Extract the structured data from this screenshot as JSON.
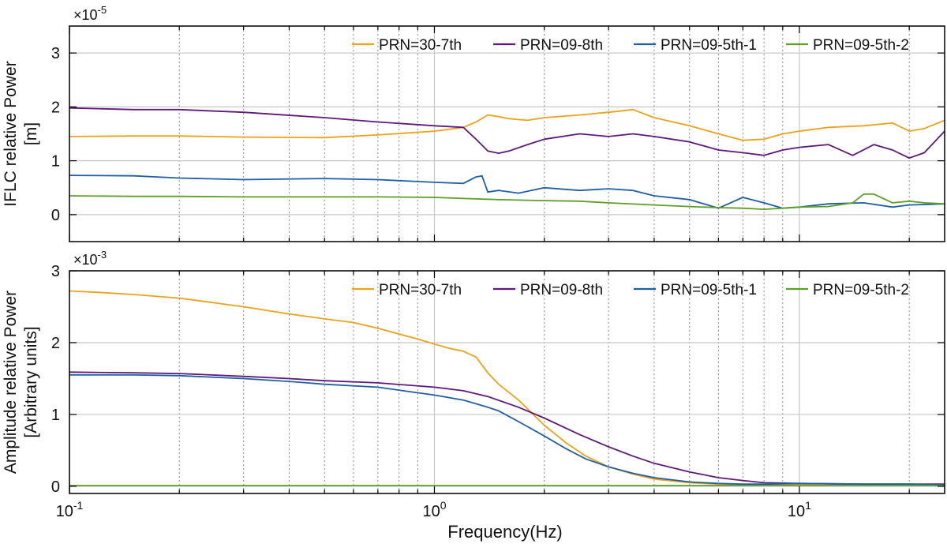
{
  "colors": {
    "prn30_7th": "#EDA21B",
    "prn09_8th": "#5E1A7A",
    "prn09_5th_1": "#1F5FA6",
    "prn09_5th_2": "#5E9F2A",
    "grid_major": "#c8c8c8",
    "grid_minor": "#8a8a8a",
    "axis": "#000000"
  },
  "xlabel": "Frequency(Hz)",
  "x_ticks": [
    {
      "value": 0.1,
      "base": "10",
      "exp": "-1"
    },
    {
      "value": 1,
      "base": "10",
      "exp": "0"
    },
    {
      "value": 10,
      "base": "10",
      "exp": "1"
    }
  ],
  "chart_data": [
    {
      "type": "line",
      "xscale": "log",
      "xlim": [
        0.1,
        25
      ],
      "ylim": [
        -0.5,
        3.5
      ],
      "ylabel_line1": "IFLC relative Power",
      "ylabel_line2": "[m]",
      "y_multiplier": "×10",
      "y_multiplier_exp": "-5",
      "y_ticks": [
        0,
        1,
        2,
        3
      ],
      "grid": "on",
      "legend_position": "top",
      "series": [
        {
          "name": "PRN=30-7th",
          "color_key": "prn30_7th",
          "x": [
            0.1,
            0.15,
            0.2,
            0.3,
            0.5,
            0.7,
            1.0,
            1.2,
            1.3,
            1.4,
            1.5,
            1.6,
            1.8,
            2.0,
            2.5,
            3.0,
            3.5,
            4.0,
            5.0,
            6.0,
            7.0,
            8.0,
            9.0,
            10,
            12,
            15,
            18,
            20,
            22,
            25
          ],
          "y": [
            1.45,
            1.46,
            1.46,
            1.44,
            1.43,
            1.48,
            1.55,
            1.62,
            1.72,
            1.85,
            1.82,
            1.78,
            1.75,
            1.8,
            1.85,
            1.9,
            1.95,
            1.8,
            1.65,
            1.5,
            1.38,
            1.4,
            1.5,
            1.55,
            1.62,
            1.65,
            1.7,
            1.55,
            1.6,
            1.75
          ]
        },
        {
          "name": "PRN=09-8th",
          "color_key": "prn09_8th",
          "x": [
            0.1,
            0.15,
            0.2,
            0.3,
            0.5,
            0.7,
            1.0,
            1.2,
            1.3,
            1.4,
            1.5,
            1.6,
            1.8,
            2.0,
            2.5,
            3.0,
            3.5,
            4.0,
            5.0,
            6.0,
            7.0,
            8.0,
            9.0,
            10,
            12,
            14,
            16,
            18,
            20,
            22,
            25
          ],
          "y": [
            1.98,
            1.95,
            1.95,
            1.9,
            1.8,
            1.72,
            1.65,
            1.62,
            1.4,
            1.18,
            1.14,
            1.18,
            1.3,
            1.4,
            1.5,
            1.45,
            1.5,
            1.45,
            1.35,
            1.2,
            1.15,
            1.1,
            1.2,
            1.25,
            1.3,
            1.1,
            1.3,
            1.2,
            1.05,
            1.15,
            1.55
          ]
        },
        {
          "name": "PRN=09-5th-1",
          "color_key": "prn09_5th_1",
          "x": [
            0.1,
            0.15,
            0.2,
            0.3,
            0.5,
            0.7,
            1.0,
            1.2,
            1.3,
            1.35,
            1.4,
            1.5,
            1.7,
            2.0,
            2.5,
            3.0,
            3.5,
            4.0,
            5.0,
            6.0,
            7.0,
            8.0,
            9.0,
            10,
            12,
            15,
            18,
            20,
            25
          ],
          "y": [
            0.73,
            0.72,
            0.68,
            0.65,
            0.67,
            0.65,
            0.6,
            0.58,
            0.7,
            0.72,
            0.42,
            0.45,
            0.4,
            0.5,
            0.45,
            0.48,
            0.45,
            0.35,
            0.28,
            0.12,
            0.32,
            0.22,
            0.12,
            0.14,
            0.2,
            0.22,
            0.14,
            0.18,
            0.2
          ]
        },
        {
          "name": "PRN=09-5th-2",
          "color_key": "prn09_5th_2",
          "x": [
            0.1,
            0.15,
            0.2,
            0.3,
            0.5,
            0.7,
            1.0,
            1.2,
            1.5,
            2.0,
            2.5,
            3.0,
            4.0,
            5.0,
            6.0,
            7.0,
            8.0,
            9.0,
            10,
            12,
            14,
            15,
            16,
            18,
            20,
            22,
            25
          ],
          "y": [
            0.35,
            0.34,
            0.34,
            0.33,
            0.33,
            0.33,
            0.32,
            0.3,
            0.28,
            0.26,
            0.25,
            0.22,
            0.18,
            0.15,
            0.13,
            0.12,
            0.1,
            0.12,
            0.14,
            0.15,
            0.22,
            0.38,
            0.38,
            0.22,
            0.25,
            0.22,
            0.2
          ]
        }
      ]
    },
    {
      "type": "line",
      "xscale": "log",
      "xlim": [
        0.1,
        25
      ],
      "ylim": [
        -0.1,
        3.0
      ],
      "ylabel_line1": "Amplitude relative Power",
      "ylabel_line2": "[Arbitrary units]",
      "y_multiplier": "×10",
      "y_multiplier_exp": "-3",
      "y_ticks": [
        0,
        1,
        2,
        3
      ],
      "grid": "on",
      "legend_position": "top",
      "series": [
        {
          "name": "PRN=30-7th",
          "color_key": "prn30_7th",
          "x": [
            0.1,
            0.12,
            0.15,
            0.2,
            0.3,
            0.4,
            0.5,
            0.6,
            0.7,
            0.8,
            0.9,
            1.0,
            1.1,
            1.2,
            1.3,
            1.4,
            1.5,
            1.7,
            2.0,
            2.3,
            2.6,
            3.0,
            3.5,
            4.0,
            5.0,
            6.0,
            7.0,
            8.0,
            10,
            15,
            20,
            25
          ],
          "y": [
            2.72,
            2.7,
            2.67,
            2.62,
            2.5,
            2.4,
            2.33,
            2.28,
            2.2,
            2.12,
            2.05,
            1.98,
            1.92,
            1.88,
            1.8,
            1.58,
            1.42,
            1.2,
            0.85,
            0.6,
            0.42,
            0.27,
            0.17,
            0.1,
            0.05,
            0.03,
            0.02,
            0.02,
            0.03,
            0.03,
            0.03,
            0.02
          ]
        },
        {
          "name": "PRN=09-8th",
          "color_key": "prn09_8th",
          "x": [
            0.1,
            0.15,
            0.2,
            0.3,
            0.4,
            0.5,
            0.7,
            1.0,
            1.2,
            1.4,
            1.7,
            2.0,
            2.5,
            3.0,
            3.5,
            4.0,
            5.0,
            6.0,
            7.0,
            8.0,
            10,
            15,
            20,
            25
          ],
          "y": [
            1.59,
            1.58,
            1.57,
            1.53,
            1.5,
            1.47,
            1.44,
            1.38,
            1.33,
            1.25,
            1.1,
            0.95,
            0.72,
            0.55,
            0.42,
            0.32,
            0.2,
            0.12,
            0.08,
            0.05,
            0.04,
            0.03,
            0.03,
            0.03
          ]
        },
        {
          "name": "PRN=09-5th-1",
          "color_key": "prn09_5th_1",
          "x": [
            0.1,
            0.15,
            0.2,
            0.3,
            0.4,
            0.5,
            0.7,
            1.0,
            1.2,
            1.4,
            1.5,
            1.7,
            2.0,
            2.3,
            2.6,
            3.0,
            3.5,
            4.0,
            5.0,
            6.0,
            7.0,
            8.0,
            10,
            15,
            20,
            25
          ],
          "y": [
            1.55,
            1.55,
            1.54,
            1.5,
            1.46,
            1.42,
            1.38,
            1.27,
            1.2,
            1.1,
            1.05,
            0.9,
            0.7,
            0.52,
            0.38,
            0.27,
            0.18,
            0.12,
            0.06,
            0.04,
            0.03,
            0.03,
            0.04,
            0.03,
            0.03,
            0.02
          ]
        },
        {
          "name": "PRN=09-5th-2",
          "color_key": "prn09_5th_2",
          "x": [
            0.1,
            0.5,
            1.0,
            2.0,
            5.0,
            10,
            25
          ],
          "y": [
            0.01,
            0.01,
            0.01,
            0.01,
            0.01,
            0.01,
            0.01
          ]
        }
      ]
    }
  ]
}
